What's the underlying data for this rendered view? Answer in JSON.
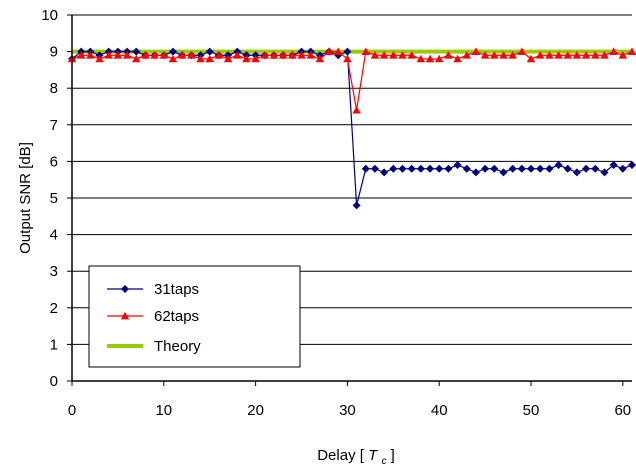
{
  "chart_data": {
    "type": "line",
    "xlabel_text": "Delay",
    "xlabel_unit_symbol": "T",
    "xlabel_unit_subscript": "c",
    "ylabel": "Output SNR [dB]",
    "xlim": [
      0,
      61
    ],
    "ylim": [
      0,
      10
    ],
    "x_ticks": [
      "0",
      "10",
      "20",
      "30",
      "40",
      "50",
      "60"
    ],
    "y_ticks": [
      "0",
      "1",
      "2",
      "3",
      "4",
      "5",
      "6",
      "7",
      "8",
      "9",
      "10"
    ],
    "grid": "horizontal",
    "legend_position": "bottom-left",
    "x": [
      0,
      1,
      2,
      3,
      4,
      5,
      6,
      7,
      8,
      9,
      10,
      11,
      12,
      13,
      14,
      15,
      16,
      17,
      18,
      19,
      20,
      21,
      22,
      23,
      24,
      25,
      26,
      27,
      28,
      29,
      30,
      31,
      32,
      33,
      34,
      35,
      36,
      37,
      38,
      39,
      40,
      41,
      42,
      43,
      44,
      45,
      46,
      47,
      48,
      49,
      50,
      51,
      52,
      53,
      54,
      55,
      56,
      57,
      58,
      59,
      60,
      61
    ],
    "series": [
      {
        "name": "31taps",
        "color": "#000080",
        "marker": "diamond",
        "values": [
          8.8,
          9.0,
          9.0,
          8.9,
          9.0,
          9.0,
          9.0,
          9.0,
          8.9,
          8.9,
          8.9,
          9.0,
          8.9,
          8.9,
          8.9,
          9.0,
          8.9,
          8.9,
          9.0,
          8.9,
          8.9,
          8.9,
          8.9,
          8.9,
          8.9,
          9.0,
          9.0,
          8.9,
          9.0,
          8.9,
          9.0,
          4.8,
          5.8,
          5.8,
          5.7,
          5.8,
          5.8,
          5.8,
          5.8,
          5.8,
          5.8,
          5.8,
          5.9,
          5.8,
          5.7,
          5.8,
          5.8,
          5.7,
          5.8,
          5.8,
          5.8,
          5.8,
          5.8,
          5.9,
          5.8,
          5.7,
          5.8,
          5.8,
          5.7,
          5.9,
          5.8,
          5.9
        ]
      },
      {
        "name": "62taps",
        "color": "#ff0000",
        "marker": "triangle",
        "values": [
          8.8,
          8.9,
          8.9,
          8.8,
          8.9,
          8.9,
          8.9,
          8.8,
          8.9,
          8.9,
          8.9,
          8.8,
          8.9,
          8.9,
          8.8,
          8.8,
          8.9,
          8.8,
          8.9,
          8.8,
          8.8,
          8.9,
          8.9,
          8.9,
          8.9,
          8.9,
          8.9,
          8.8,
          9.0,
          9.0,
          8.8,
          7.4,
          9.0,
          8.9,
          8.9,
          8.9,
          8.9,
          8.9,
          8.8,
          8.8,
          8.8,
          8.9,
          8.8,
          8.9,
          9.0,
          8.9,
          8.9,
          8.9,
          8.9,
          9.0,
          8.8,
          8.9,
          8.9,
          8.9,
          8.9,
          8.9,
          8.9,
          8.9,
          8.9,
          9.0,
          8.9,
          9.0
        ]
      },
      {
        "name": "Theory",
        "color": "#99cc00",
        "marker": "none",
        "constant": 9.0
      }
    ]
  }
}
